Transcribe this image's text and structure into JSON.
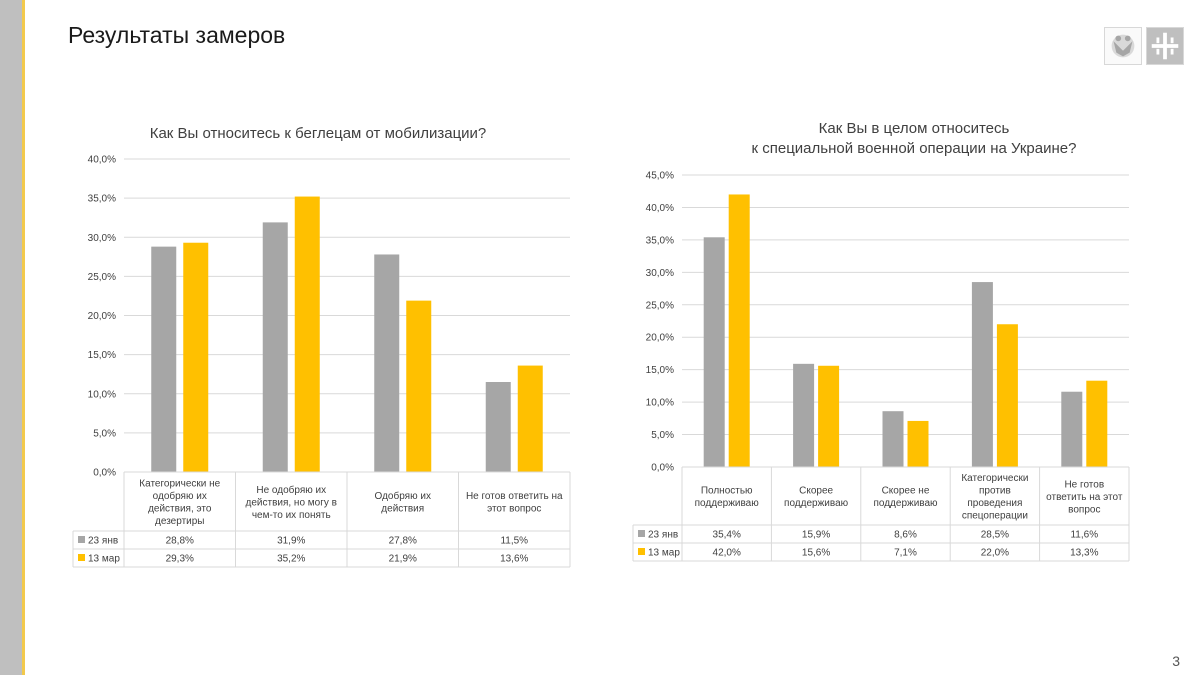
{
  "page": {
    "title": "Результаты замеров",
    "page_number": "3"
  },
  "logos": [
    "eagle-emblem",
    "cross-emblem"
  ],
  "colors": {
    "jan": "#a6a6a6",
    "mar": "#ffc000",
    "sidebar": "#bfbfbf",
    "accent": "#f2c94c"
  },
  "chart_data": [
    {
      "type": "bar",
      "title": [
        "Как Вы относитесь к беглецам от мобилизации?"
      ],
      "categories": [
        [
          "Категорически не",
          "одобряю их",
          "действия, это",
          "дезертиры"
        ],
        [
          "Не одобряю их",
          "действия, но могу в",
          "чем-то их понять"
        ],
        [
          "Одобряю их",
          "действия"
        ],
        [
          "Не готов ответить на",
          "этот вопрос"
        ]
      ],
      "series": [
        {
          "name": "23 янв",
          "values": [
            28.8,
            31.9,
            27.8,
            11.5
          ],
          "labels": [
            "28,8%",
            "31,9%",
            "27,8%",
            "11,5%"
          ]
        },
        {
          "name": "13 мар",
          "values": [
            29.3,
            35.2,
            21.9,
            13.6
          ],
          "labels": [
            "29,3%",
            "35,2%",
            "21,9%",
            "13,6%"
          ]
        }
      ],
      "y_ticks": [
        "0,0%",
        "5,0%",
        "10,0%",
        "15,0%",
        "20,0%",
        "25,0%",
        "30,0%",
        "35,0%",
        "40,0%"
      ],
      "ylim": [
        0,
        40
      ],
      "grid": true,
      "legend": "data-table"
    },
    {
      "type": "bar",
      "title": [
        "Как Вы в целом относитесь",
        "к специальной военной операции на Украине?"
      ],
      "categories": [
        [
          "Полностью",
          "поддерживаю"
        ],
        [
          "Скорее",
          "поддерживаю"
        ],
        [
          "Скорее не",
          "поддерживаю"
        ],
        [
          "Категорически",
          "против",
          "проведения",
          "спецоперации"
        ],
        [
          "Не готов",
          "ответить на этот",
          "вопрос"
        ]
      ],
      "series": [
        {
          "name": "23 янв",
          "values": [
            35.4,
            15.9,
            8.6,
            28.5,
            11.6
          ],
          "labels": [
            "35,4%",
            "15,9%",
            "8,6%",
            "28,5%",
            "11,6%"
          ]
        },
        {
          "name": "13 мар",
          "values": [
            42.0,
            15.6,
            7.1,
            22.0,
            13.3
          ],
          "labels": [
            "42,0%",
            "15,6%",
            "7,1%",
            "22,0%",
            "13,3%"
          ]
        }
      ],
      "y_ticks": [
        "0,0%",
        "5,0%",
        "10,0%",
        "15,0%",
        "20,0%",
        "25,0%",
        "30,0%",
        "35,0%",
        "40,0%",
        "45,0%"
      ],
      "ylim": [
        0,
        45
      ],
      "grid": true,
      "legend": "data-table"
    }
  ]
}
